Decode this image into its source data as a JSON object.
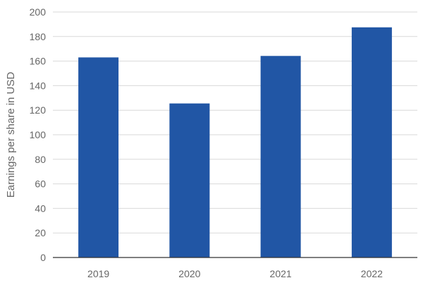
{
  "chart_data": {
    "type": "bar",
    "title": "",
    "xlabel": "",
    "ylabel": "Earnings per share in USD",
    "categories": [
      "2019",
      "2020",
      "2021",
      "2022"
    ],
    "values": [
      163,
      125.5,
      164.2,
      187.5
    ],
    "ylim": [
      0,
      200
    ],
    "yticks": [
      0,
      20,
      40,
      60,
      80,
      100,
      120,
      140,
      160,
      180,
      200
    ],
    "grid": true,
    "legend": "none",
    "colors": {
      "bar": "#2156a5",
      "grid": "#d9d9d9",
      "axis": "#333333",
      "text": "#666666"
    }
  }
}
